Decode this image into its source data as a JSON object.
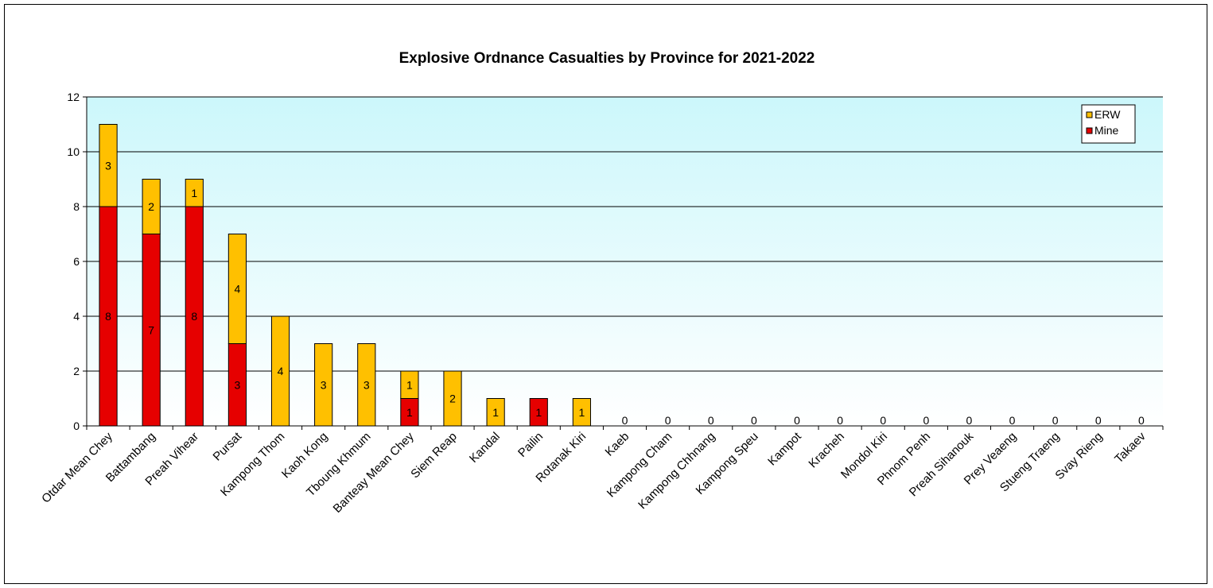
{
  "chart_data": {
    "type": "bar",
    "stacked": true,
    "title": "Explosive Ordnance Casualties by Province for 2021-2022",
    "xlabel": "",
    "ylabel": "",
    "ylim": [
      0,
      12
    ],
    "yticks": [
      "0",
      "2",
      "4",
      "6",
      "8",
      "10",
      "12"
    ],
    "grid": true,
    "legend_position": "top-right",
    "categories": [
      "Otdar Mean Chey",
      "Battambang",
      "Preah Vihear",
      "Pursat",
      "Kampong Thom",
      "Kaoh Kong",
      "Tboung Khmum",
      "Banteay Mean Chey",
      "Siem Reap",
      "Kandal",
      "Pailin",
      "Rotanak Kiri",
      "Kaeb",
      "Kampong Cham",
      "Kampong Chhnang",
      "Kampong Speu",
      "Kampot",
      "Kracheh",
      "Mondol Kiri",
      "Phnom Penh",
      "Preah Sihanouk",
      "Prey Veaeng",
      "Stueng Traeng",
      "Svay Rieng",
      "Takaev"
    ],
    "series": [
      {
        "name": "Mine",
        "color": "#e60000",
        "values": [
          8,
          7,
          8,
          3,
          0,
          0,
          0,
          1,
          0,
          0,
          1,
          0,
          0,
          0,
          0,
          0,
          0,
          0,
          0,
          0,
          0,
          0,
          0,
          0,
          0
        ]
      },
      {
        "name": "ERW",
        "color": "#ffc000",
        "values": [
          3,
          2,
          1,
          4,
          4,
          3,
          3,
          1,
          2,
          1,
          0,
          1,
          0,
          0,
          0,
          0,
          0,
          0,
          0,
          0,
          0,
          0,
          0,
          0,
          0
        ]
      }
    ],
    "legend_order": [
      "ERW",
      "Mine"
    ],
    "plot_background": [
      "#ccf7fb",
      "#ffffff"
    ]
  }
}
